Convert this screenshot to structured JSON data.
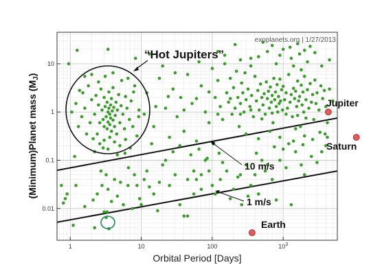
{
  "chart_data": {
    "type": "scatter",
    "credit": "exoplanets.org | 1/27/2013",
    "xlabel": "Orbital Period [Days]",
    "ylabel": "(Minimum)Planet mass (M",
    "ylabel_sub": "J",
    "ylabel_close": ")",
    "x_scale": "log",
    "y_scale": "log",
    "xlim": [
      0.65,
      5800
    ],
    "ylim": [
      0.0022,
      45
    ],
    "grid": true,
    "x_ticks": [
      {
        "value": 1,
        "label": "1"
      },
      {
        "value": 10,
        "label": "10"
      },
      {
        "value": 100,
        "label": "100"
      },
      {
        "value": 1000,
        "label": "10",
        "sup": "3"
      }
    ],
    "y_ticks": [
      {
        "value": 0.01,
        "label": "0.01"
      },
      {
        "value": 0.1,
        "label": "0.1"
      },
      {
        "value": 1,
        "label": "1"
      },
      {
        "value": 10,
        "label": "10"
      }
    ],
    "colors": {
      "planets": "#3a9a2a",
      "solar_system": "#e45a5a",
      "highlight": "#1a8a5a"
    },
    "annotations": {
      "hot_jupiters": "“Hot Jupiters”",
      "rv10": "10 m/s",
      "rv1": "1 m/s",
      "jupiter": "Jupiter",
      "saturn": "Saturn",
      "earth": "Earth"
    },
    "detection_limits": [
      {
        "label": "10 m/s",
        "from": [
          0.65,
          0.062
        ],
        "to": [
          5800,
          0.75
        ]
      },
      {
        "label": "1 m/s",
        "from": [
          0.65,
          0.0052
        ],
        "to": [
          5800,
          0.06
        ]
      }
    ],
    "solar_system": [
      {
        "name": "Jupiter",
        "x": 4330,
        "y": 1.0
      },
      {
        "name": "Saturn",
        "x": 10760,
        "y": 0.3
      },
      {
        "name": "Earth",
        "x": 365,
        "y": 0.00315
      }
    ],
    "highlighted": {
      "x": 3.5,
      "y": 0.0038
    },
    "hot_jupiter_circle": {
      "x_center": 3.6,
      "y_center": 1.0
    },
    "points": [
      [
        0.8,
        0.013
      ],
      [
        0.85,
        0.016
      ],
      [
        0.9,
        0.02
      ],
      [
        0.75,
        0.03
      ],
      [
        1.2,
        0.03
      ],
      [
        1.1,
        0.0045
      ],
      [
        2.1,
        0.015
      ],
      [
        2.2,
        0.004
      ],
      [
        2.4,
        0.02
      ],
      [
        2.8,
        0.03
      ],
      [
        3.2,
        0.05
      ],
      [
        3.4,
        0.025
      ],
      [
        3.3,
        0.0085
      ],
      [
        3.2,
        0.0065
      ],
      [
        4.6,
        0.018
      ],
      [
        5.1,
        0.035
      ],
      [
        6.6,
        0.07
      ],
      [
        7.5,
        0.01
      ],
      [
        8.0,
        0.05
      ],
      [
        8.7,
        0.03
      ],
      [
        10,
        0.012
      ],
      [
        11,
        0.04
      ],
      [
        12,
        0.06
      ],
      [
        15,
        0.02
      ],
      [
        18,
        0.035
      ],
      [
        22,
        0.1
      ],
      [
        25,
        0.03
      ],
      [
        30,
        0.05
      ],
      [
        35,
        0.012
      ],
      [
        40,
        0.007
      ],
      [
        45,
        0.007
      ],
      [
        55,
        0.02
      ],
      [
        60,
        0.04
      ],
      [
        70,
        0.025
      ],
      [
        80,
        0.1
      ],
      [
        90,
        0.06
      ],
      [
        110,
        0.02
      ],
      [
        130,
        0.04
      ],
      [
        160,
        0.06
      ],
      [
        200,
        0.025
      ],
      [
        230,
        0.045
      ],
      [
        260,
        0.012
      ],
      [
        300,
        0.08
      ],
      [
        350,
        0.03
      ],
      [
        400,
        0.05
      ],
      [
        450,
        0.02
      ],
      [
        500,
        0.1
      ],
      [
        600,
        0.08
      ],
      [
        700,
        0.04
      ],
      [
        800,
        0.015
      ],
      [
        900,
        0.1
      ],
      [
        1100,
        0.07
      ],
      [
        1300,
        0.012
      ],
      [
        1500,
        0.15
      ],
      [
        1800,
        0.08
      ],
      [
        2000,
        0.05
      ],
      [
        2500,
        0.12
      ],
      [
        3000,
        0.09
      ],
      [
        3500,
        0.15
      ],
      [
        4000,
        0.2
      ],
      [
        1.2,
        1.5
      ],
      [
        1.5,
        2.5
      ],
      [
        1.6,
        1.2
      ],
      [
        1.8,
        3.5
      ],
      [
        2.0,
        1.8
      ],
      [
        2.2,
        0.9
      ],
      [
        2.3,
        2.2
      ],
      [
        2.5,
        1.4
      ],
      [
        2.6,
        0.6
      ],
      [
        2.7,
        3.0
      ],
      [
        2.8,
        1.1
      ],
      [
        2.9,
        0.7
      ],
      [
        3.0,
        2.0
      ],
      [
        3.0,
        0.5
      ],
      [
        3.1,
        1.3
      ],
      [
        3.2,
        0.8
      ],
      [
        3.3,
        1.6
      ],
      [
        3.3,
        0.45
      ],
      [
        3.4,
        1.0
      ],
      [
        3.4,
        0.62
      ],
      [
        3.5,
        2.6
      ],
      [
        3.5,
        1.2
      ],
      [
        3.6,
        0.9
      ],
      [
        3.6,
        0.55
      ],
      [
        3.7,
        1.4
      ],
      [
        3.7,
        0.75
      ],
      [
        3.8,
        0.4
      ],
      [
        3.8,
        1.9
      ],
      [
        3.9,
        1.05
      ],
      [
        4.0,
        0.68
      ],
      [
        4.0,
        3.2
      ],
      [
        4.1,
        1.25
      ],
      [
        4.2,
        0.5
      ],
      [
        4.3,
        0.85
      ],
      [
        4.4,
        1.6
      ],
      [
        4.5,
        0.35
      ],
      [
        4.6,
        1.1
      ],
      [
        4.8,
        2.3
      ],
      [
        5.0,
        0.6
      ],
      [
        5.2,
        1.35
      ],
      [
        5.5,
        0.9
      ],
      [
        5.8,
        0.45
      ],
      [
        6.0,
        2.1
      ],
      [
        6.3,
        1.2
      ],
      [
        6.8,
        0.7
      ],
      [
        7.2,
        1.7
      ],
      [
        7.6,
        0.5
      ],
      [
        8.1,
        3.5
      ],
      [
        8.7,
        0.32
      ],
      [
        9.3,
        1.1
      ],
      [
        2.1,
        0.28
      ],
      [
        2.4,
        0.35
      ],
      [
        2.6,
        0.22
      ],
      [
        3.0,
        0.26
      ],
      [
        3.6,
        0.3
      ],
      [
        4.2,
        0.24
      ],
      [
        5.0,
        0.2
      ],
      [
        6.0,
        0.27
      ],
      [
        7.0,
        0.18
      ],
      [
        1.3,
        0.5
      ],
      [
        1.45,
        0.8
      ],
      [
        1.7,
        0.35
      ],
      [
        1.9,
        0.6
      ],
      [
        1.35,
        2.8
      ],
      [
        1.6,
        5.5
      ],
      [
        2.0,
        6.0
      ],
      [
        2.5,
        4.2
      ],
      [
        3.1,
        5.5
      ],
      [
        4.0,
        6.5
      ],
      [
        5.3,
        4.5
      ],
      [
        6.5,
        5.0
      ],
      [
        7.8,
        2.6
      ],
      [
        9.2,
        0.8
      ],
      [
        2.2,
        0.15
      ],
      [
        2.9,
        0.18
      ],
      [
        3.4,
        0.17
      ],
      [
        4.6,
        0.13
      ],
      [
        5.9,
        0.14
      ],
      [
        1.15,
        0.12
      ],
      [
        1.05,
        1.0
      ],
      [
        0.95,
        10
      ],
      [
        1.25,
        19
      ],
      [
        3.4,
        20
      ],
      [
        8.3,
        13
      ],
      [
        12,
        2.5
      ],
      [
        15,
        0.5
      ],
      [
        18,
        5.0
      ],
      [
        22,
        1.2
      ],
      [
        25,
        0.3
      ],
      [
        28,
        3.0
      ],
      [
        32,
        0.8
      ],
      [
        36,
        2.0
      ],
      [
        40,
        0.4
      ],
      [
        45,
        6.0
      ],
      [
        52,
        1.5
      ],
      [
        60,
        0.25
      ],
      [
        70,
        3.5
      ],
      [
        80,
        1.0
      ],
      [
        90,
        0.6
      ],
      [
        100,
        8.0
      ],
      [
        110,
        2.0
      ],
      [
        120,
        4.5
      ],
      [
        130,
        1.3
      ],
      [
        140,
        0.7
      ],
      [
        150,
        10
      ],
      [
        160,
        2.5
      ],
      [
        170,
        1.6
      ],
      [
        180,
        5.0
      ],
      [
        190,
        0.9
      ],
      [
        200,
        3.2
      ],
      [
        210,
        1.2
      ],
      [
        220,
        7.0
      ],
      [
        230,
        2.0
      ],
      [
        240,
        0.5
      ],
      [
        250,
        1.5
      ],
      [
        260,
        4.0
      ],
      [
        270,
        2.5
      ],
      [
        280,
        1.0
      ],
      [
        290,
        6.5
      ],
      [
        300,
        1.8
      ],
      [
        320,
        3.0
      ],
      [
        340,
        1.3
      ],
      [
        360,
        2.2
      ],
      [
        380,
        0.8
      ],
      [
        400,
        5.5
      ],
      [
        420,
        1.7
      ],
      [
        440,
        2.8
      ],
      [
        460,
        1.1
      ],
      [
        480,
        3.8
      ],
      [
        500,
        2.0
      ],
      [
        520,
        1.4
      ],
      [
        540,
        2.4
      ],
      [
        560,
        0.9
      ],
      [
        580,
        4.2
      ],
      [
        600,
        1.9
      ],
      [
        620,
        2.7
      ],
      [
        640,
        1.2
      ],
      [
        660,
        3.3
      ],
      [
        680,
        1.6
      ],
      [
        700,
        2.2
      ],
      [
        720,
        0.6
      ],
      [
        740,
        5.0
      ],
      [
        760,
        1.8
      ],
      [
        780,
        2.6
      ],
      [
        800,
        1.3
      ],
      [
        820,
        3.7
      ],
      [
        840,
        1.0
      ],
      [
        860,
        2.1
      ],
      [
        880,
        1.5
      ],
      [
        900,
        4.8
      ],
      [
        920,
        1.7
      ],
      [
        950,
        2.9
      ],
      [
        980,
        1.1
      ],
      [
        1000,
        3.4
      ],
      [
        1050,
        1.8
      ],
      [
        1100,
        2.5
      ],
      [
        1150,
        1.2
      ],
      [
        1200,
        6.0
      ],
      [
        1250,
        1.6
      ],
      [
        1300,
        2.3
      ],
      [
        1350,
        0.8
      ],
      [
        1400,
        3.1
      ],
      [
        1450,
        1.9
      ],
      [
        1500,
        2.7
      ],
      [
        1550,
        1.3
      ],
      [
        1600,
        4.4
      ],
      [
        1650,
        1.7
      ],
      [
        1700,
        2.1
      ],
      [
        1750,
        0.5
      ],
      [
        1800,
        3.6
      ],
      [
        1850,
        1.4
      ],
      [
        1900,
        2.6
      ],
      [
        1950,
        1.0
      ],
      [
        2000,
        5.5
      ],
      [
        2100,
        1.8
      ],
      [
        2200,
        2.9
      ],
      [
        2300,
        1.2
      ],
      [
        2400,
        3.9
      ],
      [
        2500,
        1.6
      ],
      [
        2600,
        2.3
      ],
      [
        2700,
        0.7
      ],
      [
        2800,
        4.6
      ],
      [
        2900,
        1.5
      ],
      [
        3000,
        2.5
      ],
      [
        3200,
        1.1
      ],
      [
        3400,
        3.5
      ],
      [
        3600,
        1.9
      ],
      [
        3800,
        2.8
      ],
      [
        4000,
        1.3
      ],
      [
        4200,
        0.6
      ],
      [
        4500,
        3.0
      ],
      [
        5000,
        1.7
      ],
      [
        150,
        15
      ],
      [
        250,
        12
      ],
      [
        350,
        9
      ],
      [
        450,
        14
      ],
      [
        600,
        18
      ],
      [
        800,
        10
      ],
      [
        1000,
        20
      ],
      [
        1300,
        13
      ],
      [
        1700,
        16
      ],
      [
        2200,
        11
      ],
      [
        2800,
        17
      ],
      [
        3500,
        9
      ],
      [
        4500,
        12
      ],
      [
        300,
        0.35
      ],
      [
        450,
        0.28
      ],
      [
        650,
        0.4
      ],
      [
        900,
        0.3
      ],
      [
        1200,
        0.22
      ],
      [
        1500,
        0.45
      ],
      [
        2000,
        0.32
      ],
      [
        2600,
        0.27
      ],
      [
        3300,
        0.38
      ],
      [
        4200,
        0.3
      ],
      [
        20,
        0.08
      ],
      [
        28,
        0.15
      ],
      [
        35,
        0.2
      ],
      [
        50,
        0.13
      ],
      [
        65,
        0.17
      ],
      [
        85,
        0.11
      ],
      [
        105,
        0.22
      ],
      [
        125,
        0.14
      ],
      [
        45,
        0.04
      ],
      [
        55,
        0.06
      ],
      [
        70,
        0.05
      ],
      [
        100,
        0.03
      ],
      [
        140,
        0.09
      ],
      [
        180,
        0.016
      ],
      [
        250,
        0.05
      ],
      [
        320,
        0.018
      ],
      [
        420,
        0.14
      ],
      [
        560,
        0.06
      ],
      [
        750,
        0.19
      ],
      [
        1000,
        0.17
      ],
      [
        1400,
        0.25
      ],
      [
        1900,
        0.21
      ],
      [
        3900,
        0.35
      ],
      [
        1100,
        0.9
      ],
      [
        1600,
        0.85
      ],
      [
        2100,
        0.75
      ],
      [
        700,
        0.95
      ],
      [
        500,
        0.72
      ],
      [
        350,
        1.1
      ],
      [
        250,
        0.9
      ],
      [
        180,
        1.9
      ],
      [
        120,
        0.9
      ],
      [
        90,
        2.6
      ],
      [
        60,
        1.9
      ],
      [
        40,
        1.1
      ],
      [
        30,
        6.5
      ],
      [
        24,
        2.1
      ],
      [
        16,
        1.3
      ],
      [
        14,
        0.22
      ],
      [
        11,
        0.9
      ],
      [
        20,
        9.0
      ],
      [
        13,
        16
      ],
      [
        65,
        11
      ],
      [
        120,
        18
      ],
      [
        210,
        25
      ],
      [
        350,
        13
      ],
      [
        520,
        28
      ],
      [
        700,
        24
      ],
      [
        900,
        15
      ],
      [
        1250,
        22
      ],
      [
        1600,
        26
      ],
      [
        2000,
        19
      ],
      [
        2400,
        23
      ],
      [
        1400,
        9.0
      ],
      [
        1800,
        7.5
      ],
      [
        3.0,
        0.0085
      ],
      [
        5.6,
        0.012
      ],
      [
        6.5,
        0.03
      ],
      [
        1.6,
        0.011
      ],
      [
        2.7,
        0.06
      ],
      [
        3.8,
        0.014
      ],
      [
        4.2,
        0.04
      ],
      [
        9.5,
        0.016
      ],
      [
        13,
        0.028
      ],
      [
        17,
        0.009
      ]
    ]
  }
}
